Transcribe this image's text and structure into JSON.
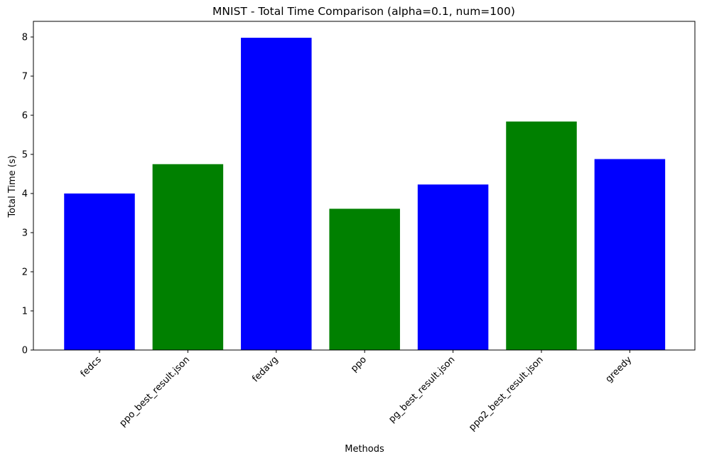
{
  "chart_data": {
    "type": "bar",
    "title": "MNIST - Total Time Comparison (alpha=0.1, num=100)",
    "xlabel": "Methods",
    "ylabel": "Total Time (s)",
    "ylim": [
      0,
      8.4
    ],
    "yticks": [
      0,
      1,
      2,
      3,
      4,
      5,
      6,
      7,
      8
    ],
    "categories": [
      "fedcs",
      "ppo_best_result.json",
      "fedavg",
      "ppo",
      "pg_best_result.json",
      "ppo2_best_result.json",
      "greedy"
    ],
    "values": [
      4.0,
      4.75,
      7.98,
      3.61,
      4.23,
      5.84,
      4.88
    ],
    "bar_colors": [
      "#0000ff",
      "#008000",
      "#0000ff",
      "#008000",
      "#0000ff",
      "#008000",
      "#0000ff"
    ],
    "xtick_rotation_deg": 45,
    "grid": false,
    "legend": false
  }
}
